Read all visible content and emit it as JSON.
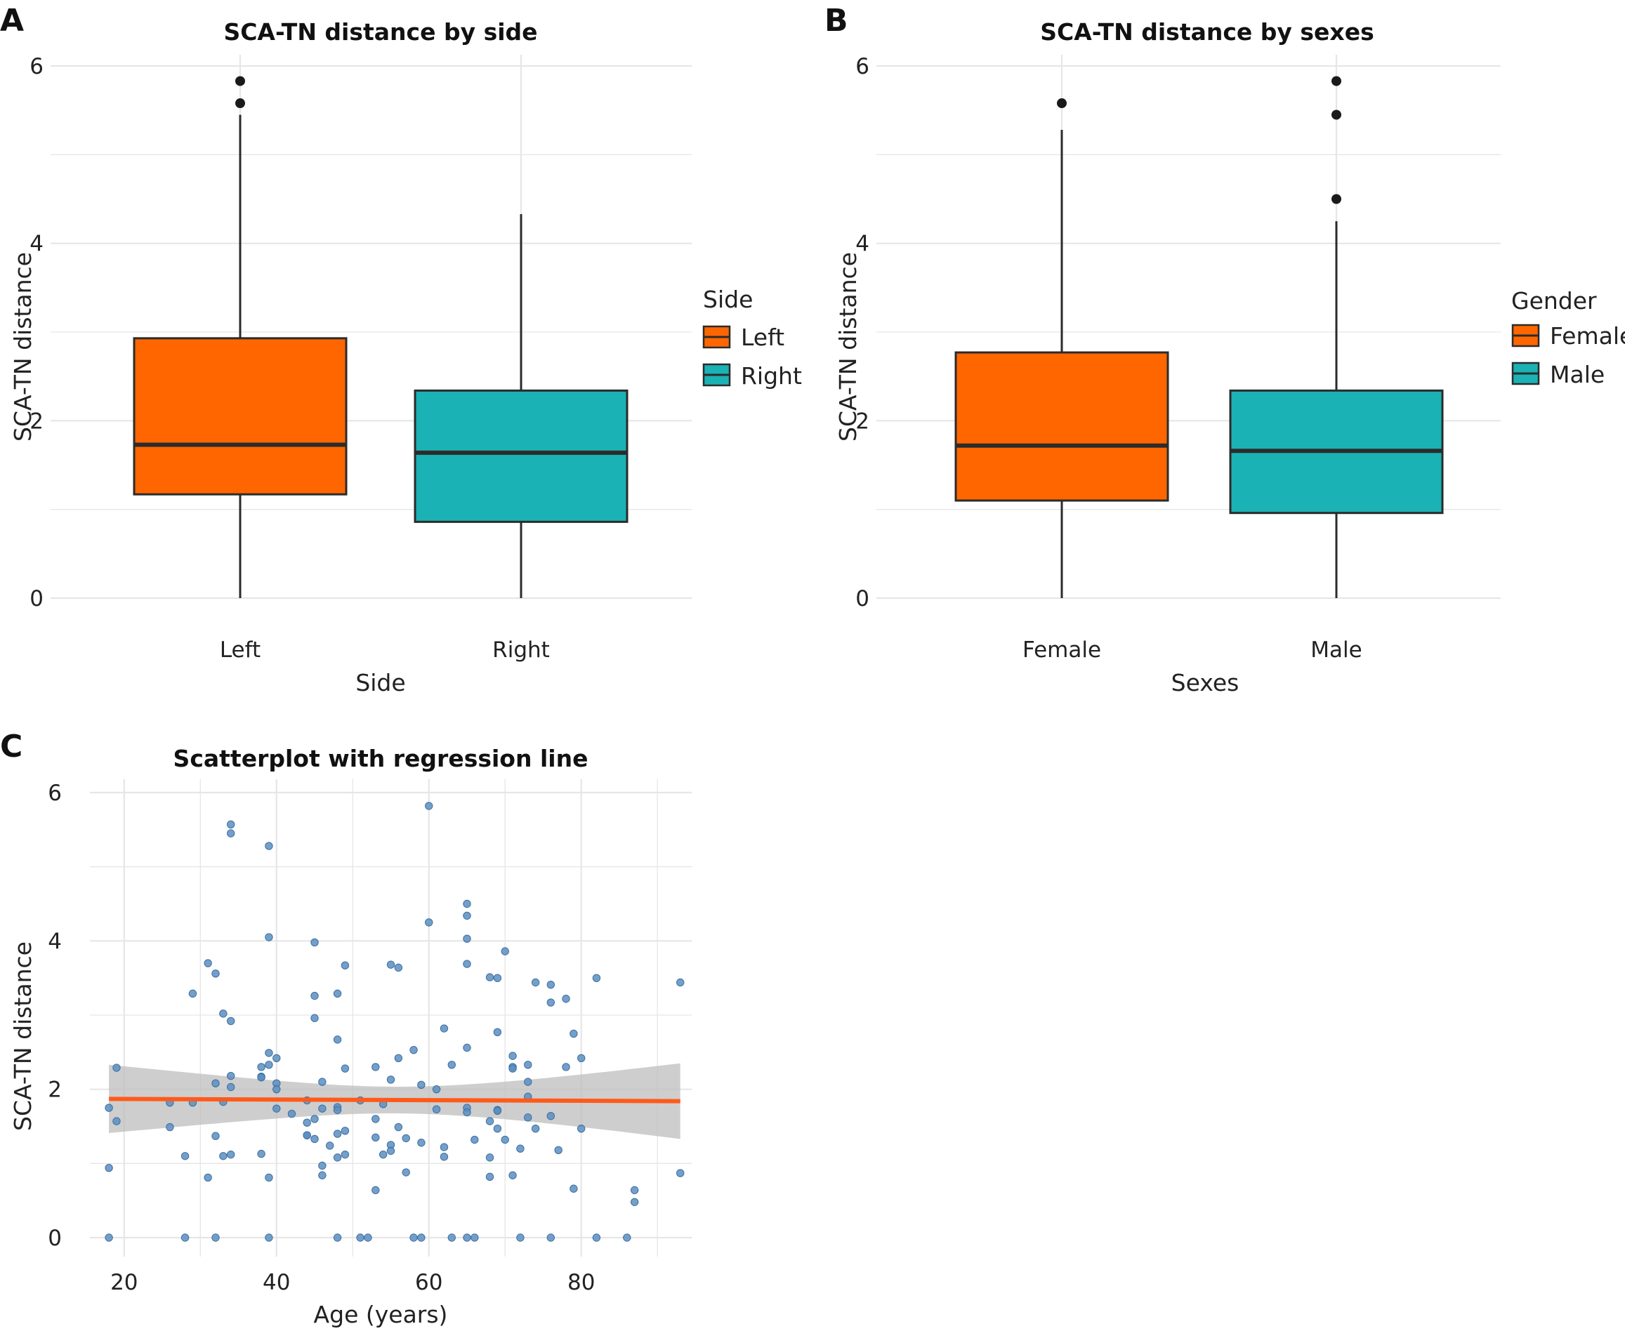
{
  "colors": {
    "left": "#ff6600",
    "right": "#1ab2b4",
    "female": "#ff6600",
    "male": "#1ab2b4",
    "points": "#5b8ec2",
    "regression": "#ff5a1a",
    "ci_band": "#bdbdbd",
    "grid": "#e6e6e6",
    "box_outline": "#2b2b2b"
  },
  "chart_data": [
    {
      "panel": "A",
      "type": "box",
      "title": "SCA-TN distance by side",
      "xlabel": "Side",
      "ylabel": "SCA-TN distance",
      "ylim": [
        0,
        6
      ],
      "yticks": [
        0,
        2,
        4,
        6
      ],
      "categories": [
        "Left",
        "Right"
      ],
      "legend": {
        "title": "Side",
        "entries": [
          "Left",
          "Right"
        ],
        "position": "right"
      },
      "boxes": [
        {
          "category": "Left",
          "min": 0,
          "q1": 1.17,
          "median": 1.73,
          "q3": 2.93,
          "max": 5.45,
          "outliers": [
            5.58,
            5.83
          ]
        },
        {
          "category": "Right",
          "min": 0,
          "q1": 0.86,
          "median": 1.64,
          "q3": 2.34,
          "max": 4.33,
          "outliers": []
        }
      ]
    },
    {
      "panel": "B",
      "type": "box",
      "title": "SCA-TN distance by sexes",
      "xlabel": "Sexes",
      "ylabel": "SCA-TN distance",
      "ylim": [
        0,
        6
      ],
      "yticks": [
        0,
        2,
        4,
        6
      ],
      "categories": [
        "Female",
        "Male"
      ],
      "legend": {
        "title": "Gender",
        "entries": [
          "Female",
          "Male"
        ],
        "position": "right"
      },
      "boxes": [
        {
          "category": "Female",
          "min": 0,
          "q1": 1.1,
          "median": 1.72,
          "q3": 2.77,
          "max": 5.28,
          "outliers": [
            5.58
          ]
        },
        {
          "category": "Male",
          "min": 0,
          "q1": 0.96,
          "median": 1.66,
          "q3": 2.34,
          "max": 4.25,
          "outliers": [
            4.5,
            5.45,
            5.83
          ]
        }
      ]
    },
    {
      "panel": "C",
      "type": "scatter",
      "title": "Scatterplot with regression line",
      "xlabel": "Age (years)",
      "ylabel": "SCA-TN distance",
      "xlim": [
        15.5,
        94.5
      ],
      "ylim": [
        -0.3,
        6.1
      ],
      "xticks": [
        20,
        40,
        60,
        80
      ],
      "yticks": [
        0,
        2,
        4,
        6
      ],
      "regression": {
        "x": [
          18,
          93
        ],
        "y": [
          1.87,
          1.84
        ],
        "ci_low": [
          1.41,
          1.33
        ],
        "ci_high": [
          2.33,
          2.35
        ]
      },
      "points": [
        [
          18,
          0
        ],
        [
          18,
          1.75
        ],
        [
          18,
          0.94
        ],
        [
          19,
          2.29
        ],
        [
          19,
          1.57
        ],
        [
          26,
          1.82
        ],
        [
          26,
          1.49
        ],
        [
          28,
          1.1
        ],
        [
          28,
          0
        ],
        [
          29,
          3.29
        ],
        [
          29,
          1.82
        ],
        [
          31,
          3.7
        ],
        [
          31,
          0.81
        ],
        [
          32,
          3.56
        ],
        [
          32,
          1.37
        ],
        [
          32,
          2.08
        ],
        [
          32,
          0
        ],
        [
          33,
          1.1
        ],
        [
          33,
          1.83
        ],
        [
          33,
          3.02
        ],
        [
          34,
          5.57
        ],
        [
          34,
          5.45
        ],
        [
          34,
          2.92
        ],
        [
          34,
          2.18
        ],
        [
          34,
          2.03
        ],
        [
          34,
          1.12
        ],
        [
          38,
          2.3
        ],
        [
          38,
          2.17
        ],
        [
          38,
          2.16
        ],
        [
          38,
          1.13
        ],
        [
          39,
          2.33
        ],
        [
          39,
          2.49
        ],
        [
          39,
          5.28
        ],
        [
          39,
          4.05
        ],
        [
          39,
          0.81
        ],
        [
          39,
          0
        ],
        [
          40,
          2.42
        ],
        [
          40,
          2.08
        ],
        [
          40,
          2.0
        ],
        [
          40,
          1.74
        ],
        [
          42,
          1.67
        ],
        [
          44,
          1.85
        ],
        [
          44,
          1.55
        ],
        [
          44,
          1.38
        ],
        [
          44,
          1.38
        ],
        [
          45,
          1.6
        ],
        [
          45,
          1.33
        ],
        [
          45,
          3.98
        ],
        [
          45,
          3.26
        ],
        [
          45,
          2.96
        ],
        [
          46,
          2.1
        ],
        [
          46,
          1.74
        ],
        [
          46,
          0.97
        ],
        [
          46,
          0.84
        ],
        [
          47,
          1.24
        ],
        [
          48,
          3.29
        ],
        [
          48,
          2.67
        ],
        [
          48,
          1.76
        ],
        [
          48,
          1.72
        ],
        [
          48,
          1.4
        ],
        [
          48,
          1.08
        ],
        [
          48,
          0
        ],
        [
          49,
          3.67
        ],
        [
          49,
          2.28
        ],
        [
          49,
          1.44
        ],
        [
          49,
          1.12
        ],
        [
          51,
          1.85
        ],
        [
          51,
          0
        ],
        [
          52,
          0
        ],
        [
          53,
          2.3
        ],
        [
          53,
          1.6
        ],
        [
          53,
          1.35
        ],
        [
          53,
          0.64
        ],
        [
          54,
          1.8
        ],
        [
          54,
          1.12
        ],
        [
          55,
          3.68
        ],
        [
          55,
          2.13
        ],
        [
          55,
          1.25
        ],
        [
          55,
          1.17
        ],
        [
          56,
          3.64
        ],
        [
          56,
          2.42
        ],
        [
          56,
          1.49
        ],
        [
          57,
          1.34
        ],
        [
          57,
          0.88
        ],
        [
          58,
          2.53
        ],
        [
          58,
          0
        ],
        [
          59,
          2.06
        ],
        [
          59,
          1.28
        ],
        [
          59,
          0
        ],
        [
          60,
          5.82
        ],
        [
          60,
          4.25
        ],
        [
          61,
          2.0
        ],
        [
          61,
          1.73
        ],
        [
          62,
          2.82
        ],
        [
          62,
          1.22
        ],
        [
          62,
          1.09
        ],
        [
          63,
          2.33
        ],
        [
          63,
          0
        ],
        [
          65,
          4.5
        ],
        [
          65,
          4.34
        ],
        [
          65,
          4.03
        ],
        [
          65,
          3.69
        ],
        [
          65,
          2.56
        ],
        [
          65,
          1.75
        ],
        [
          65,
          1.69
        ],
        [
          65,
          0
        ],
        [
          66,
          1.32
        ],
        [
          66,
          0
        ],
        [
          68,
          3.51
        ],
        [
          68,
          1.57
        ],
        [
          68,
          1.08
        ],
        [
          68,
          0.82
        ],
        [
          69,
          3.5
        ],
        [
          69,
          2.77
        ],
        [
          69,
          1.72
        ],
        [
          69,
          1.71
        ],
        [
          69,
          1.47
        ],
        [
          70,
          3.86
        ],
        [
          70,
          1.32
        ],
        [
          71,
          2.45
        ],
        [
          71,
          2.3
        ],
        [
          71,
          2.28
        ],
        [
          71,
          0.84
        ],
        [
          72,
          1.2
        ],
        [
          72,
          0
        ],
        [
          73,
          2.33
        ],
        [
          73,
          2.1
        ],
        [
          73,
          1.9
        ],
        [
          73,
          1.62
        ],
        [
          74,
          3.44
        ],
        [
          74,
          1.47
        ],
        [
          76,
          3.41
        ],
        [
          76,
          3.17
        ],
        [
          76,
          1.64
        ],
        [
          76,
          0
        ],
        [
          77,
          1.18
        ],
        [
          78,
          3.22
        ],
        [
          78,
          2.3
        ],
        [
          79,
          2.75
        ],
        [
          79,
          0.66
        ],
        [
          80,
          2.42
        ],
        [
          80,
          1.47
        ],
        [
          82,
          3.5
        ],
        [
          82,
          0
        ],
        [
          86,
          0
        ],
        [
          87,
          0.64
        ],
        [
          87,
          0.48
        ],
        [
          93,
          3.44
        ],
        [
          93,
          0.87
        ]
      ]
    }
  ]
}
